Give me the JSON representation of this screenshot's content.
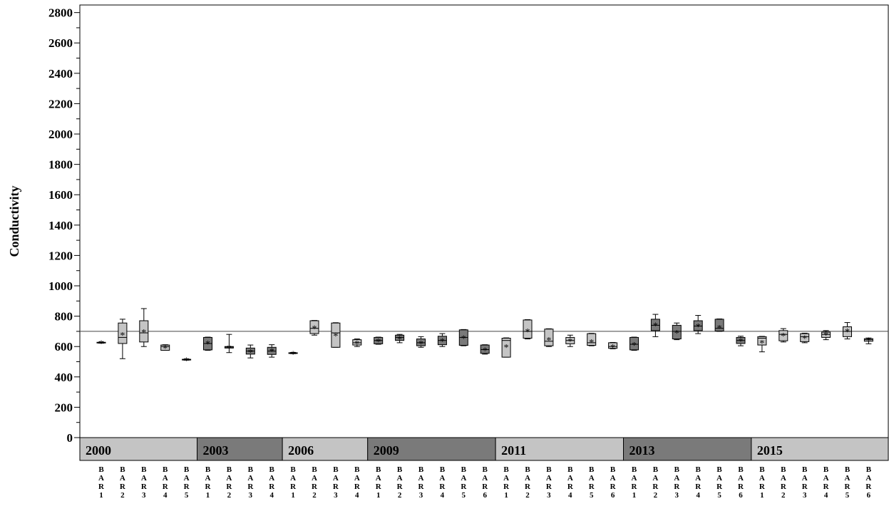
{
  "chart_data": {
    "type": "box",
    "title": "",
    "xlabel": "",
    "ylabel": "Conductivity",
    "ylim": [
      0,
      2850
    ],
    "yticks": [
      0,
      200,
      400,
      600,
      800,
      1000,
      1200,
      1400,
      1600,
      1800,
      2000,
      2200,
      2400,
      2600,
      2800
    ],
    "reference_line": 700,
    "grid": false,
    "legend": "none",
    "colors": {
      "light": "#c4c4c4",
      "dark": "#7a7a7a",
      "axis": "#000000"
    },
    "groups": [
      {
        "year": "2000",
        "shade": "light",
        "boxes": [
          {
            "site": "BAR1",
            "shade": "light",
            "min": 622,
            "q1": 624,
            "median": 626,
            "q3": 628,
            "max": 630,
            "mean": 626
          },
          {
            "site": "BAR2",
            "shade": "light",
            "min": 520,
            "q1": 620,
            "median": 660,
            "q3": 755,
            "max": 780,
            "mean": 680
          },
          {
            "site": "BAR3",
            "shade": "light",
            "min": 600,
            "q1": 630,
            "median": 690,
            "q3": 770,
            "max": 850,
            "mean": 700
          },
          {
            "site": "BAR4",
            "shade": "light",
            "min": 575,
            "q1": 575,
            "median": 600,
            "q3": 610,
            "max": 612,
            "mean": 595
          },
          {
            "site": "BAR5",
            "shade": "light",
            "min": 510,
            "q1": 512,
            "median": 514,
            "q3": 516,
            "max": 518,
            "mean": 514
          }
        ]
      },
      {
        "year": "2003",
        "shade": "dark",
        "boxes": [
          {
            "site": "BAR1",
            "shade": "dark",
            "min": 575,
            "q1": 578,
            "median": 620,
            "q3": 660,
            "max": 662,
            "mean": 625
          },
          {
            "site": "BAR2",
            "shade": "dark",
            "min": 560,
            "q1": 590,
            "median": 597,
            "q3": 600,
            "max": 680,
            "mean": 597
          },
          {
            "site": "BAR3",
            "shade": "dark",
            "min": 525,
            "q1": 550,
            "median": 570,
            "q3": 590,
            "max": 610,
            "mean": 568
          },
          {
            "site": "BAR4",
            "shade": "dark",
            "min": 530,
            "q1": 548,
            "median": 570,
            "q3": 595,
            "max": 612,
            "mean": 575
          }
        ]
      },
      {
        "year": "2006",
        "shade": "light",
        "boxes": [
          {
            "site": "BAR1",
            "shade": "light",
            "min": 553,
            "q1": 555,
            "median": 557,
            "q3": 559,
            "max": 561,
            "mean": 557
          },
          {
            "site": "BAR2",
            "shade": "light",
            "min": 675,
            "q1": 685,
            "median": 720,
            "q3": 770,
            "max": 772,
            "mean": 725
          },
          {
            "site": "BAR3",
            "shade": "light",
            "min": 595,
            "q1": 595,
            "median": 690,
            "q3": 755,
            "max": 757,
            "mean": 675
          },
          {
            "site": "BAR4",
            "shade": "light",
            "min": 600,
            "q1": 610,
            "median": 625,
            "q3": 645,
            "max": 650,
            "mean": 625
          }
        ]
      },
      {
        "year": "2009",
        "shade": "dark",
        "boxes": [
          {
            "site": "BAR1",
            "shade": "dark",
            "min": 615,
            "q1": 618,
            "median": 640,
            "q3": 660,
            "max": 662,
            "mean": 638
          },
          {
            "site": "BAR2",
            "shade": "dark",
            "min": 625,
            "q1": 640,
            "median": 660,
            "q3": 675,
            "max": 680,
            "mean": 655
          },
          {
            "site": "BAR3",
            "shade": "dark",
            "min": 595,
            "q1": 605,
            "median": 625,
            "q3": 650,
            "max": 665,
            "mean": 625
          },
          {
            "site": "BAR4",
            "shade": "dark",
            "min": 600,
            "q1": 612,
            "median": 640,
            "q3": 668,
            "max": 685,
            "mean": 640
          },
          {
            "site": "BAR5",
            "shade": "dark",
            "min": 605,
            "q1": 608,
            "median": 660,
            "q3": 710,
            "max": 712,
            "mean": 660
          },
          {
            "site": "BAR6",
            "shade": "dark",
            "min": 550,
            "q1": 555,
            "median": 580,
            "q3": 610,
            "max": 612,
            "mean": 580
          }
        ]
      },
      {
        "year": "2011",
        "shade": "light",
        "boxes": [
          {
            "site": "BAR1",
            "shade": "light",
            "min": 530,
            "q1": 530,
            "median": 640,
            "q3": 655,
            "max": 657,
            "mean": 600
          },
          {
            "site": "BAR2",
            "shade": "light",
            "min": 650,
            "q1": 655,
            "median": 700,
            "q3": 775,
            "max": 777,
            "mean": 705
          },
          {
            "site": "BAR3",
            "shade": "light",
            "min": 600,
            "q1": 605,
            "median": 635,
            "q3": 715,
            "max": 717,
            "mean": 648
          },
          {
            "site": "BAR4",
            "shade": "light",
            "min": 600,
            "q1": 618,
            "median": 640,
            "q3": 660,
            "max": 675,
            "mean": 640
          },
          {
            "site": "BAR5",
            "shade": "light",
            "min": 605,
            "q1": 608,
            "median": 625,
            "q3": 685,
            "max": 687,
            "mean": 635
          },
          {
            "site": "BAR6",
            "shade": "light",
            "min": 585,
            "q1": 588,
            "median": 600,
            "q3": 625,
            "max": 627,
            "mean": 600
          }
        ]
      },
      {
        "year": "2013",
        "shade": "dark",
        "boxes": [
          {
            "site": "BAR1",
            "shade": "dark",
            "min": 575,
            "q1": 578,
            "median": 615,
            "q3": 660,
            "max": 662,
            "mean": 615
          },
          {
            "site": "BAR2",
            "shade": "dark",
            "min": 665,
            "q1": 705,
            "median": 740,
            "q3": 780,
            "max": 812,
            "mean": 745
          },
          {
            "site": "BAR3",
            "shade": "dark",
            "min": 645,
            "q1": 650,
            "median": 700,
            "q3": 740,
            "max": 755,
            "mean": 695
          },
          {
            "site": "BAR4",
            "shade": "dark",
            "min": 685,
            "q1": 705,
            "median": 735,
            "q3": 770,
            "max": 805,
            "mean": 738
          },
          {
            "site": "BAR5",
            "shade": "dark",
            "min": 700,
            "q1": 702,
            "median": 720,
            "q3": 780,
            "max": 782,
            "mean": 728
          },
          {
            "site": "BAR6",
            "shade": "dark",
            "min": 605,
            "q1": 620,
            "median": 640,
            "q3": 660,
            "max": 668,
            "mean": 640
          }
        ]
      },
      {
        "year": "2015",
        "shade": "light",
        "boxes": [
          {
            "site": "BAR1",
            "shade": "light",
            "min": 565,
            "q1": 610,
            "median": 655,
            "q3": 665,
            "max": 667,
            "mean": 628
          },
          {
            "site": "BAR2",
            "shade": "light",
            "min": 630,
            "q1": 638,
            "median": 680,
            "q3": 705,
            "max": 718,
            "mean": 675
          },
          {
            "site": "BAR3",
            "shade": "light",
            "min": 625,
            "q1": 632,
            "median": 665,
            "q3": 685,
            "max": 688,
            "mean": 660
          },
          {
            "site": "BAR4",
            "shade": "light",
            "min": 645,
            "q1": 660,
            "median": 680,
            "q3": 695,
            "max": 705,
            "mean": 680
          },
          {
            "site": "BAR5",
            "shade": "light",
            "min": 650,
            "q1": 665,
            "median": 700,
            "q3": 730,
            "max": 758,
            "mean": 705
          },
          {
            "site": "BAR6",
            "shade": "light",
            "min": 618,
            "q1": 635,
            "median": 645,
            "q3": 652,
            "max": 656,
            "mean": 645
          }
        ]
      }
    ]
  }
}
